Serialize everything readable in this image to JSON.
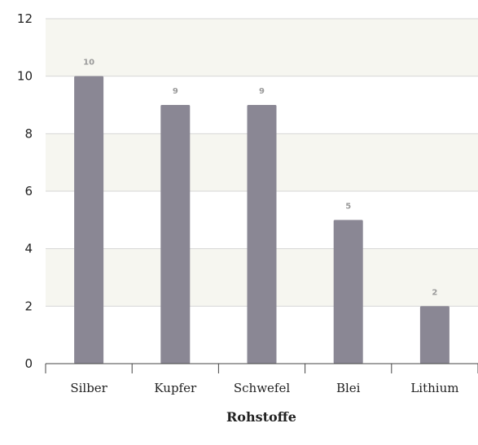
{
  "chart_data": {
    "type": "bar",
    "categories": [
      "Silber",
      "Kupfer",
      "Schwefel",
      "Blei",
      "Lithium"
    ],
    "values": [
      10,
      9,
      9,
      5,
      2
    ],
    "xlabel": "Rohstoffe",
    "ylabel": "",
    "ylim": [
      0,
      12
    ],
    "yticks": [
      0,
      2,
      4,
      6,
      8,
      10,
      12
    ],
    "grid": true,
    "data_labels": true,
    "colors": {
      "bar": "#8a8794",
      "band": "#f6f6f0",
      "grid": "#d6d6d6",
      "axis": "#444444",
      "data_label": "#9a9a9a"
    }
  }
}
